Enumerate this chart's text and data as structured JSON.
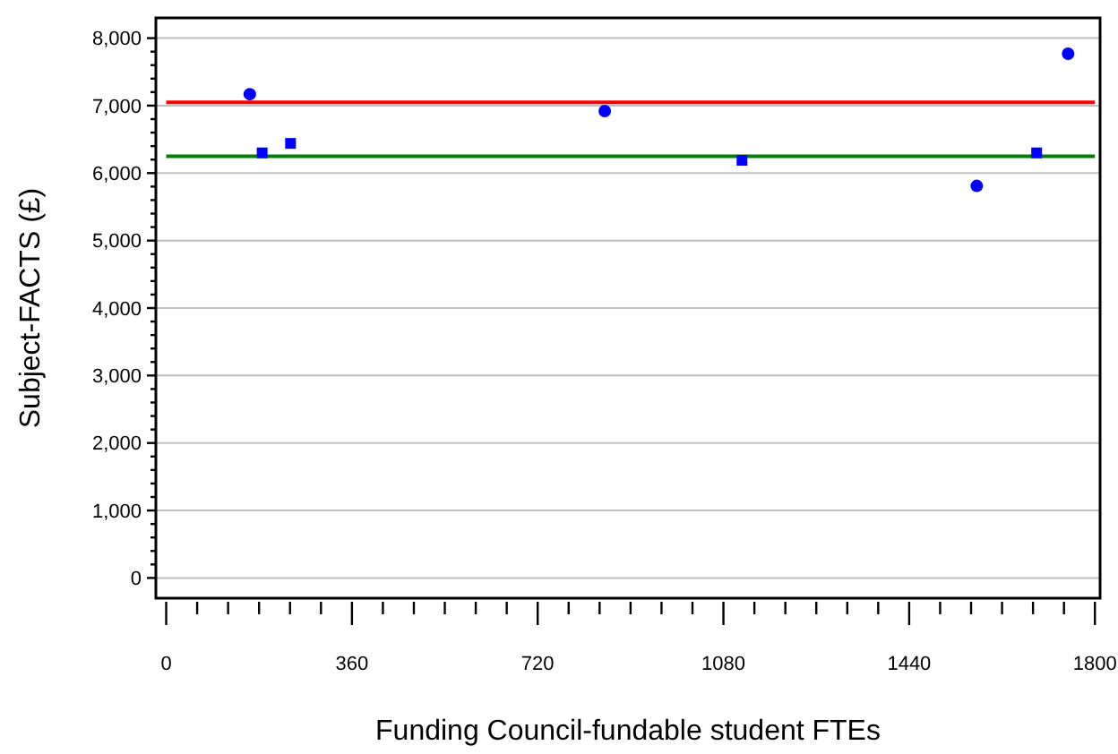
{
  "chart_data": {
    "type": "scatter",
    "xlabel": "Funding Council-fundable student FTEs",
    "ylabel": "Subject-FACTS (£)",
    "series": [
      {
        "color": "#0000ff",
        "marker": "circle",
        "x": [
          162,
          850,
          1571,
          1748
        ],
        "values": [
          7170,
          6920,
          5810,
          7770
        ]
      },
      {
        "color": "#0000ff",
        "marker": "square",
        "x": [
          186,
          241,
          1116,
          1687
        ],
        "values": [
          6300,
          6440,
          6190,
          6300
        ]
      }
    ],
    "ref_lines": [
      {
        "axis": "y",
        "value": 7050,
        "color": "#ff0000"
      },
      {
        "axis": "y",
        "value": 6250,
        "color": "#008000"
      }
    ],
    "xlim": [
      -20,
      1810
    ],
    "ylim": [
      -300,
      8300
    ],
    "xticks": [
      0,
      {
        "value": 60,
        "label": null
      },
      {
        "value": 120,
        "label": null
      },
      {
        "value": 180,
        "label": null
      },
      {
        "value": 240,
        "label": null
      },
      {
        "value": 300,
        "label": null
      },
      360,
      {
        "value": 420,
        "label": null
      },
      {
        "value": 480,
        "label": null
      },
      {
        "value": 540,
        "label": null
      },
      {
        "value": 600,
        "label": null
      },
      {
        "value": 660,
        "label": null
      },
      720,
      {
        "value": 780,
        "label": null
      },
      {
        "value": 840,
        "label": null
      },
      {
        "value": 900,
        "label": null
      },
      {
        "value": 960,
        "label": null
      },
      {
        "value": 1020,
        "label": null
      },
      1080,
      {
        "value": 1140,
        "label": null
      },
      {
        "value": 1200,
        "label": null
      },
      {
        "value": 1260,
        "label": null
      },
      {
        "value": 1320,
        "label": null
      },
      {
        "value": 1380,
        "label": null
      },
      1440,
      {
        "value": 1500,
        "label": null
      },
      {
        "value": 1560,
        "label": null
      },
      {
        "value": 1620,
        "label": null
      },
      {
        "value": 1680,
        "label": null
      },
      {
        "value": 1740,
        "label": null
      },
      1800
    ],
    "yticks": [
      0,
      {
        "value": 200,
        "label": null
      },
      {
        "value": 400,
        "label": null
      },
      {
        "value": 600,
        "label": null
      },
      {
        "value": 800,
        "label": null
      },
      {
        "value": 1000,
        "label": "1,000"
      },
      {
        "value": 1200,
        "label": null
      },
      {
        "value": 1400,
        "label": null
      },
      {
        "value": 1600,
        "label": null
      },
      {
        "value": 1800,
        "label": null
      },
      {
        "value": 2000,
        "label": "2,000"
      },
      {
        "value": 2200,
        "label": null
      },
      {
        "value": 2400,
        "label": null
      },
      {
        "value": 2600,
        "label": null
      },
      {
        "value": 2800,
        "label": null
      },
      {
        "value": 3000,
        "label": "3,000"
      },
      {
        "value": 3200,
        "label": null
      },
      {
        "value": 3400,
        "label": null
      },
      {
        "value": 3600,
        "label": null
      },
      {
        "value": 3800,
        "label": null
      },
      {
        "value": 4000,
        "label": "4,000"
      },
      {
        "value": 4200,
        "label": null
      },
      {
        "value": 4400,
        "label": null
      },
      {
        "value": 4600,
        "label": null
      },
      {
        "value": 4800,
        "label": null
      },
      {
        "value": 5000,
        "label": "5,000"
      },
      {
        "value": 5200,
        "label": null
      },
      {
        "value": 5400,
        "label": null
      },
      {
        "value": 5600,
        "label": null
      },
      {
        "value": 5800,
        "label": null
      },
      {
        "value": 6000,
        "label": "6,000"
      },
      {
        "value": 6200,
        "label": null
      },
      {
        "value": 6400,
        "label": null
      },
      {
        "value": 6600,
        "label": null
      },
      {
        "value": 6800,
        "label": null
      },
      {
        "value": 7000,
        "label": "7,000"
      },
      {
        "value": 7200,
        "label": null
      },
      {
        "value": 7400,
        "label": null
      },
      {
        "value": 7600,
        "label": null
      },
      {
        "value": 7800,
        "label": null
      },
      {
        "value": 8000,
        "label": "8,000"
      }
    ],
    "grid": "y"
  }
}
